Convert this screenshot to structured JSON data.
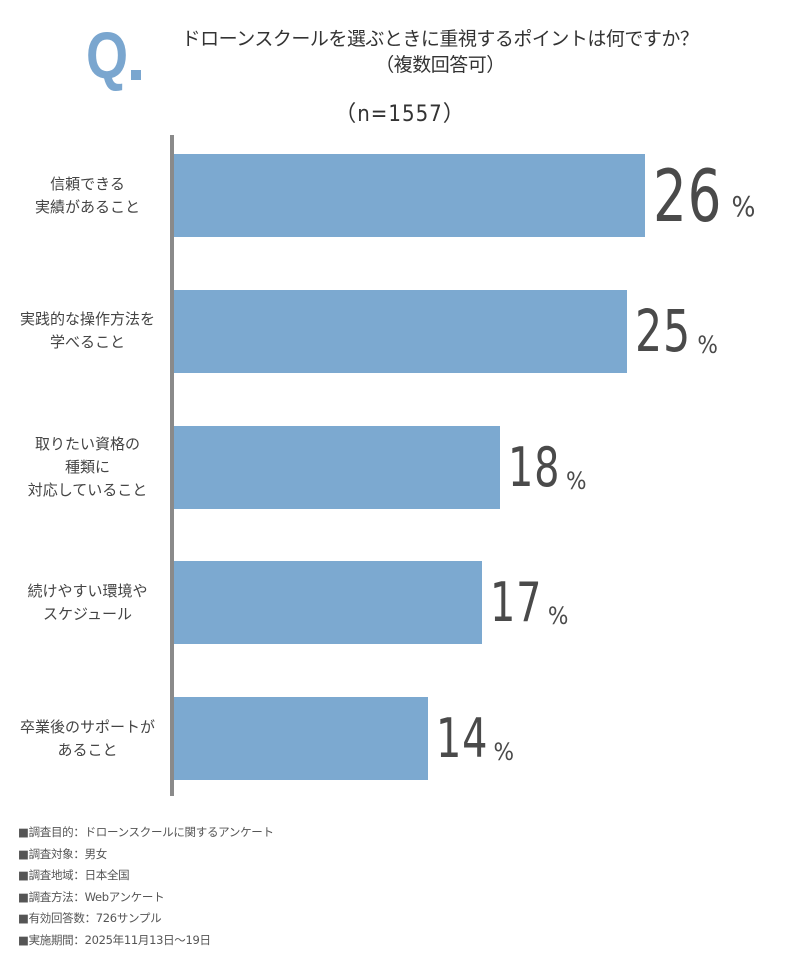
{
  "header": {
    "q_mark": "Q",
    "title": "ドローンスクールを選ぶときに重視するポイントは何ですか？",
    "subtitle": "（複数回答可）",
    "sample_size": "（n=1557）"
  },
  "colors": {
    "bar": "#7ca9d0",
    "q_mark": "#7aa6cf",
    "axis": "#8a8a8a",
    "value_text": "#4a4a4a"
  },
  "chart_data": {
    "type": "bar",
    "orientation": "horizontal",
    "title": "ドローンスクールを選ぶときに重視するポイントは何ですか？（複数回答可）",
    "subtitle": "（n=1557）",
    "categories": [
      "信頼できる\n実績があること",
      "実践的な操作方法を\n学べること",
      "取りたい資格の\n種類に\n対応していること",
      "続けやすい環境や\nスケジュール",
      "卒業後のサポートが\nあること"
    ],
    "values": [
      26,
      25,
      18,
      17,
      14
    ],
    "value_labels": [
      "26",
      "25",
      "18",
      "17",
      "14"
    ],
    "unit": "%",
    "xlabel": "",
    "ylabel": "",
    "grid": false,
    "legend": null
  },
  "footnotes": [
    "■調査目的：ドローンスクールに関するアンケート",
    "■調査対象：男女",
    "■調査地域：日本全国",
    "■調査方法：Webアンケート",
    "■有効回答数：726サンプル",
    "■実施期間：2025年11月13日〜19日"
  ]
}
